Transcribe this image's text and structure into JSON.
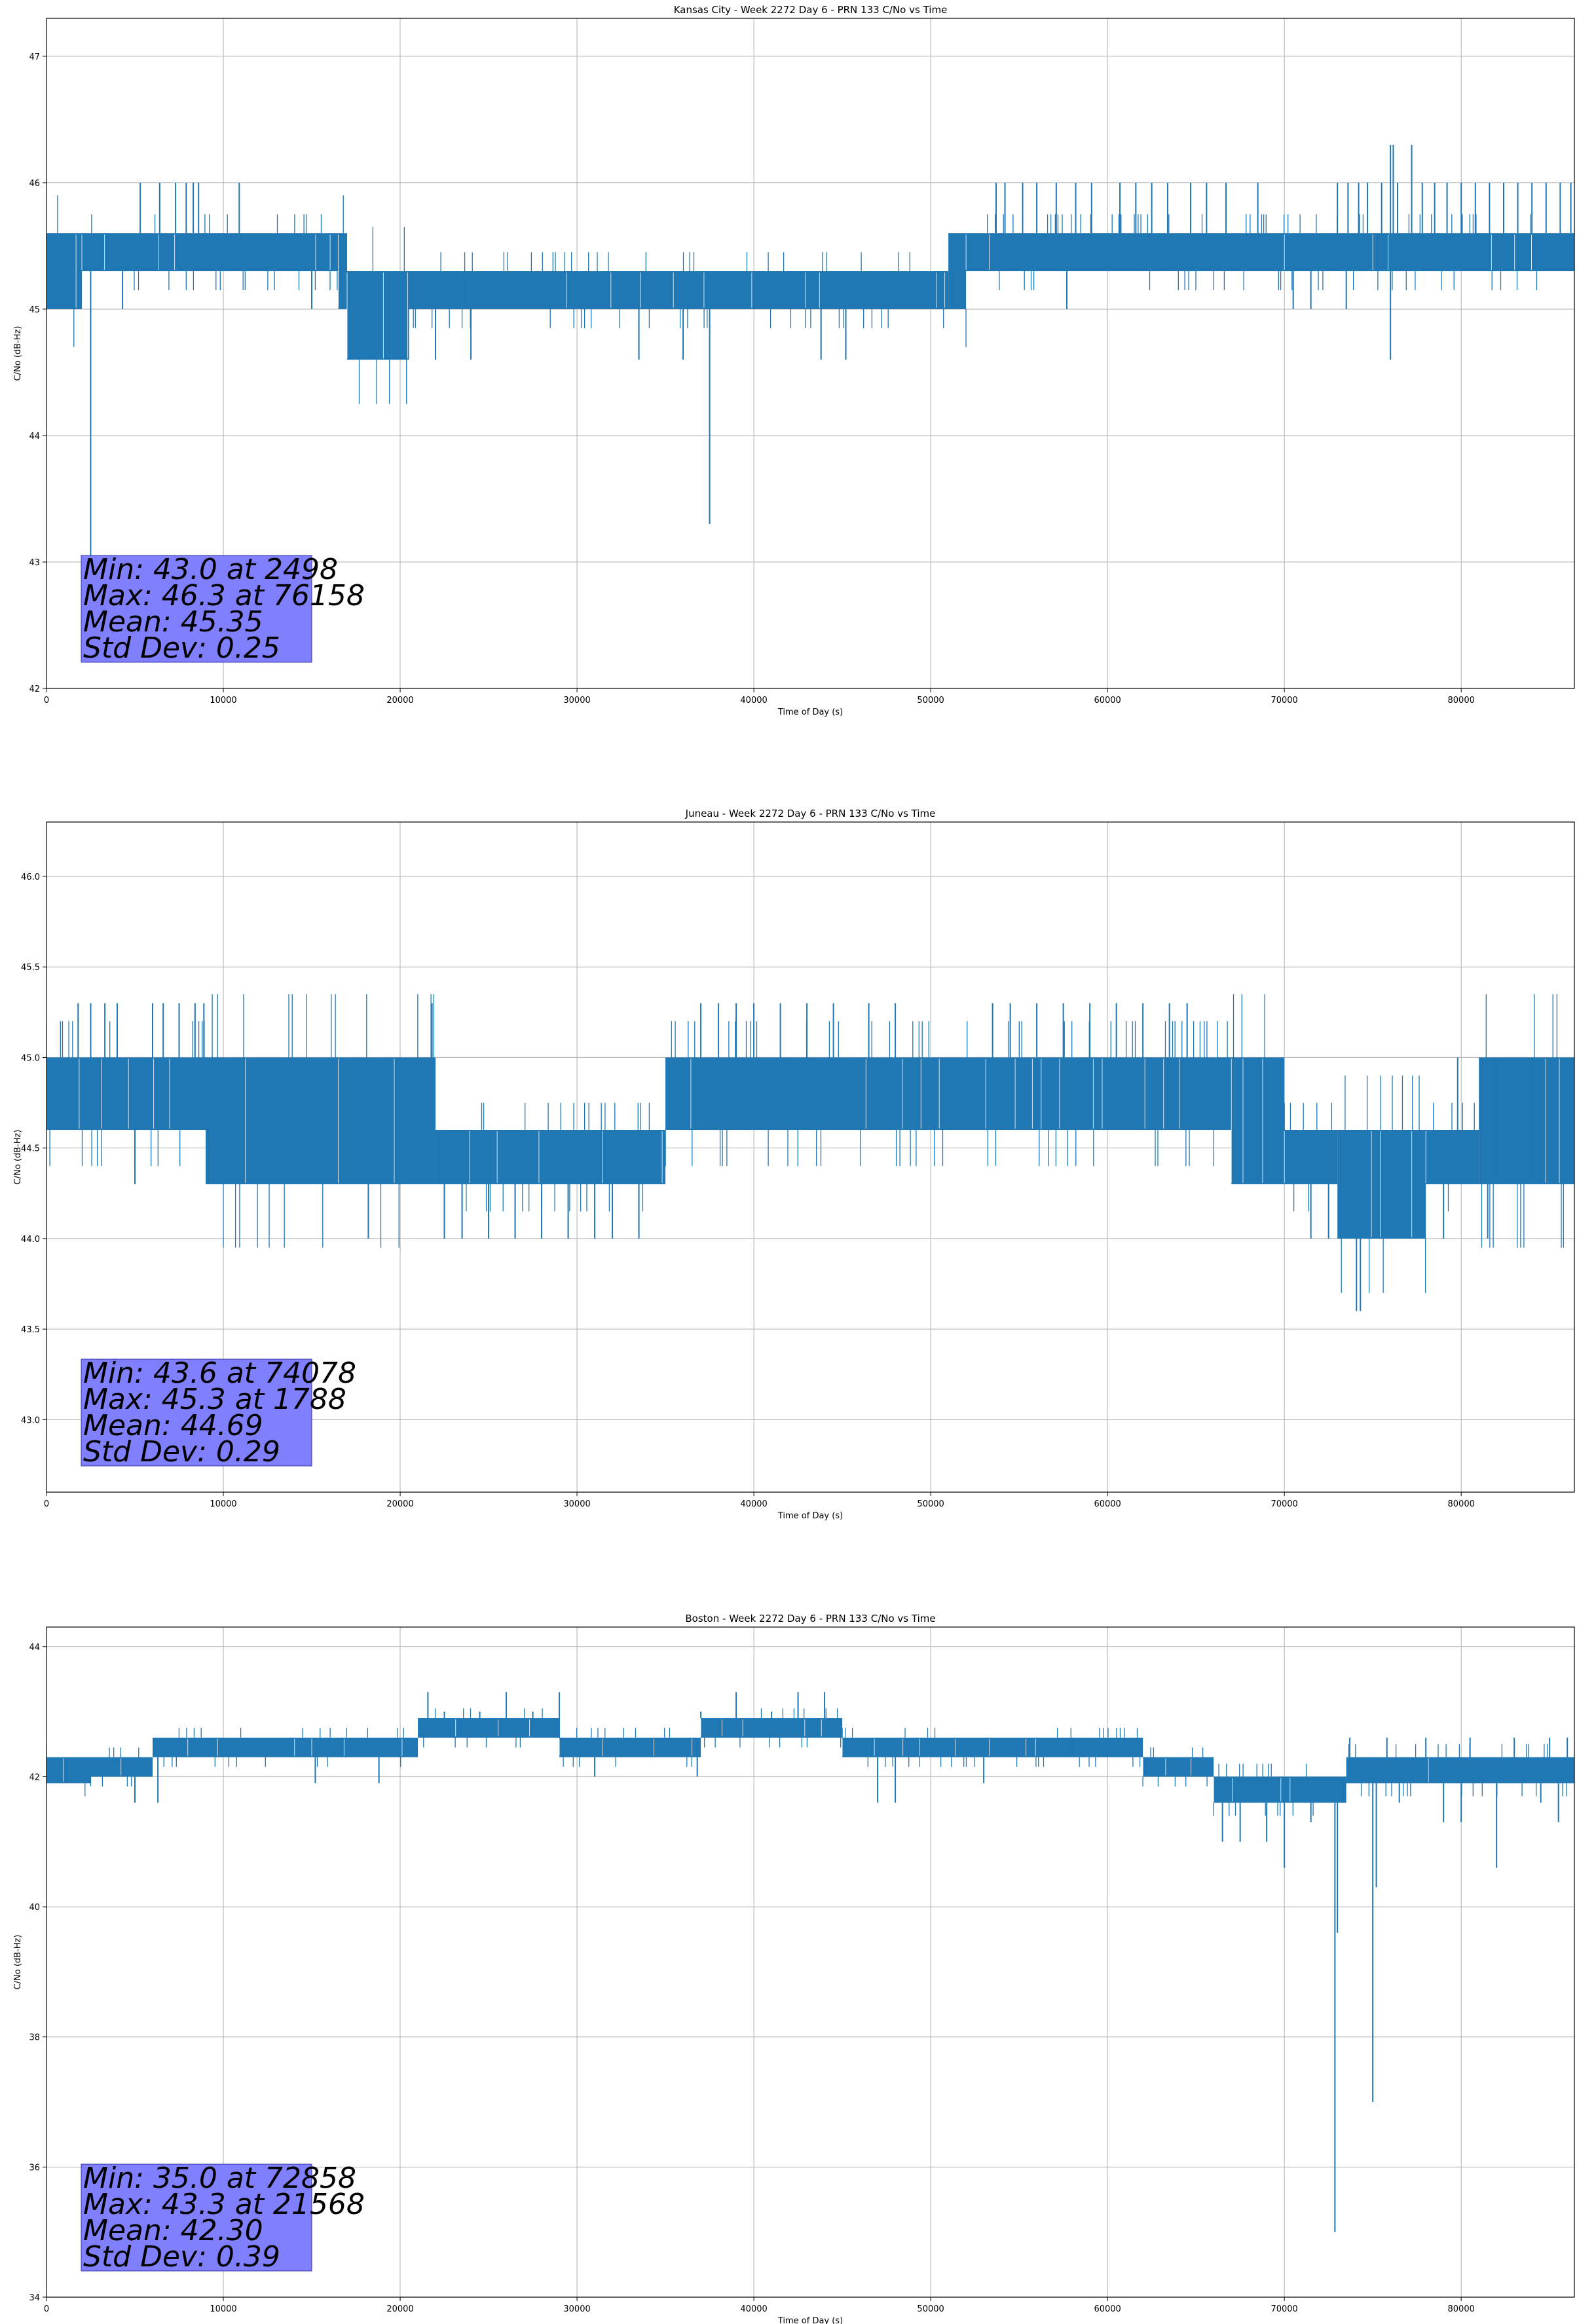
{
  "figure": {
    "background": "#ffffff",
    "line_color": "#1f77b4",
    "grid_color": "#b0b0b0",
    "stats_box_color": "#8080ff"
  },
  "chart_data": [
    {
      "type": "line",
      "title": "Kansas City - Week 2272 Day 6 - PRN 133 C/No vs Time",
      "xlabel": "Time of Day (s)",
      "ylabel": "C/No (dB-Hz)",
      "xlim": [
        0,
        86400
      ],
      "ylim": [
        42,
        47.3
      ],
      "xticks": [
        0,
        10000,
        20000,
        30000,
        40000,
        50000,
        60000,
        70000,
        80000
      ],
      "yticks": [
        42,
        43,
        44,
        45,
        46,
        47
      ],
      "ytick_labels": [
        "42",
        "43",
        "44",
        "45",
        "46",
        "47"
      ],
      "grid": true,
      "stats": [
        "Min: 43.0 at 2498",
        "Max: 46.3 at 76158",
        "Mean: 45.35",
        "Std Dev: 0.25"
      ],
      "band_segments": [
        {
          "x": [
            0,
            2000
          ],
          "low": 45.0,
          "high": 45.6
        },
        {
          "x": [
            2000,
            16500
          ],
          "low": 45.3,
          "high": 45.6
        },
        {
          "x": [
            16500,
            17000
          ],
          "low": 45.0,
          "high": 45.6
        },
        {
          "x": [
            17000,
            19500
          ],
          "low": 44.6,
          "high": 45.3
        },
        {
          "x": [
            19500,
            20500
          ],
          "low": 44.6,
          "high": 45.3
        },
        {
          "x": [
            20500,
            23500
          ],
          "low": 45.0,
          "high": 45.3
        },
        {
          "x": [
            23500,
            51000
          ],
          "low": 45.0,
          "high": 45.3
        },
        {
          "x": [
            51000,
            52000
          ],
          "low": 45.0,
          "high": 45.6
        },
        {
          "x": [
            52000,
            70000
          ],
          "low": 45.3,
          "high": 45.6
        },
        {
          "x": [
            70000,
            75000
          ],
          "low": 45.3,
          "high": 45.6
        },
        {
          "x": [
            75000,
            86400
          ],
          "low": 45.3,
          "high": 45.6
        }
      ],
      "spikes": [
        [
          2498,
          43.0
        ],
        [
          37500,
          43.3
        ],
        [
          33500,
          44.6
        ],
        [
          36000,
          44.6
        ],
        [
          43800,
          44.6
        ],
        [
          45200,
          44.6
        ],
        [
          22000,
          44.6
        ],
        [
          24000,
          44.6
        ],
        [
          4300,
          45.0
        ],
        [
          15000,
          45.0
        ],
        [
          57700,
          45.0
        ],
        [
          76000,
          44.6
        ],
        [
          70500,
          45.0
        ],
        [
          71500,
          45.0
        ],
        [
          73500,
          45.0
        ],
        [
          85700,
          45.3
        ],
        [
          5300,
          46.0
        ],
        [
          6400,
          46.0
        ],
        [
          7300,
          46.0
        ],
        [
          7900,
          46.0
        ],
        [
          8300,
          46.0
        ],
        [
          8600,
          46.0
        ],
        [
          10900,
          46.0
        ],
        [
          53700,
          46.0
        ],
        [
          54200,
          46.0
        ],
        [
          55200,
          46.0
        ],
        [
          56000,
          46.0
        ],
        [
          57100,
          46.0
        ],
        [
          58200,
          46.0
        ],
        [
          59100,
          46.0
        ],
        [
          60700,
          46.0
        ],
        [
          61600,
          46.0
        ],
        [
          62500,
          46.0
        ],
        [
          63400,
          46.0
        ],
        [
          64700,
          46.0
        ],
        [
          65600,
          46.0
        ],
        [
          66700,
          46.0
        ],
        [
          68500,
          46.0
        ],
        [
          73000,
          46.0
        ],
        [
          73600,
          46.0
        ],
        [
          74200,
          46.0
        ],
        [
          74700,
          46.0
        ],
        [
          75500,
          46.0
        ],
        [
          76000,
          46.3
        ],
        [
          76158,
          46.3
        ],
        [
          76400,
          46.0
        ],
        [
          77200,
          46.3
        ],
        [
          77800,
          46.0
        ],
        [
          78500,
          46.0
        ],
        [
          79200,
          46.0
        ],
        [
          80000,
          46.0
        ],
        [
          80800,
          46.0
        ],
        [
          81600,
          46.0
        ],
        [
          82400,
          46.0
        ],
        [
          83200,
          46.0
        ],
        [
          84000,
          46.0
        ],
        [
          84800,
          46.0
        ],
        [
          85600,
          46.0
        ],
        [
          86200,
          46.0
        ]
      ]
    },
    {
      "type": "line",
      "title": "Juneau - Week 2272 Day 6 - PRN 133 C/No vs Time",
      "xlabel": "Time of Day (s)",
      "ylabel": "C/No (dB-Hz)",
      "xlim": [
        0,
        86400
      ],
      "ylim": [
        42.6,
        46.3
      ],
      "xticks": [
        0,
        10000,
        20000,
        30000,
        40000,
        50000,
        60000,
        70000,
        80000
      ],
      "yticks": [
        43.0,
        43.5,
        44.0,
        44.5,
        45.0,
        45.5,
        46.0
      ],
      "ytick_labels": [
        "43.0",
        "43.5",
        "44.0",
        "44.5",
        "45.0",
        "45.5",
        "46.0"
      ],
      "grid": true,
      "stats": [
        "Min: 43.6 at 74078",
        "Max: 45.3 at 1788",
        "Mean: 44.69",
        "Std Dev: 0.29"
      ],
      "band_segments": [
        {
          "x": [
            0,
            9000
          ],
          "low": 44.6,
          "high": 45.0
        },
        {
          "x": [
            9000,
            16500
          ],
          "low": 44.3,
          "high": 45.0
        },
        {
          "x": [
            16500,
            22000
          ],
          "low": 44.3,
          "high": 45.0
        },
        {
          "x": [
            22000,
            35000
          ],
          "low": 44.3,
          "high": 44.6
        },
        {
          "x": [
            35000,
            67000
          ],
          "low": 44.6,
          "high": 45.0
        },
        {
          "x": [
            67000,
            70000
          ],
          "low": 44.3,
          "high": 45.0
        },
        {
          "x": [
            70000,
            73000
          ],
          "low": 44.3,
          "high": 44.6
        },
        {
          "x": [
            73000,
            78000
          ],
          "low": 44.0,
          "high": 44.6
        },
        {
          "x": [
            78000,
            81000
          ],
          "low": 44.3,
          "high": 44.6
        },
        {
          "x": [
            81000,
            86400
          ],
          "low": 44.3,
          "high": 45.0
        }
      ],
      "spikes": [
        [
          1788,
          45.3
        ],
        [
          2500,
          45.3
        ],
        [
          3300,
          45.3
        ],
        [
          4000,
          45.3
        ],
        [
          6000,
          45.3
        ],
        [
          6600,
          45.3
        ],
        [
          7500,
          45.3
        ],
        [
          8400,
          45.3
        ],
        [
          8900,
          45.3
        ],
        [
          21800,
          45.3
        ],
        [
          5000,
          44.3
        ],
        [
          18200,
          44.0
        ],
        [
          22500,
          44.0
        ],
        [
          23500,
          44.0
        ],
        [
          25000,
          44.0
        ],
        [
          26500,
          44.0
        ],
        [
          28000,
          44.0
        ],
        [
          29500,
          44.0
        ],
        [
          31000,
          44.0
        ],
        [
          32000,
          44.0
        ],
        [
          33500,
          44.0
        ],
        [
          37000,
          45.3
        ],
        [
          38000,
          45.3
        ],
        [
          39000,
          45.3
        ],
        [
          40000,
          45.3
        ],
        [
          41500,
          45.3
        ],
        [
          43000,
          45.3
        ],
        [
          44500,
          45.3
        ],
        [
          46500,
          45.3
        ],
        [
          48000,
          45.3
        ],
        [
          53500,
          45.3
        ],
        [
          54500,
          45.3
        ],
        [
          56000,
          45.3
        ],
        [
          57500,
          45.3
        ],
        [
          59000,
          45.3
        ],
        [
          60500,
          45.3
        ],
        [
          62000,
          45.3
        ],
        [
          63500,
          45.3
        ],
        [
          64500,
          45.3
        ],
        [
          71500,
          44.0
        ],
        [
          72500,
          44.0
        ],
        [
          74078,
          43.6
        ],
        [
          74300,
          43.6
        ],
        [
          76000,
          44.0
        ],
        [
          77500,
          44.0
        ],
        [
          79000,
          44.0
        ],
        [
          81500,
          44.0
        ],
        [
          79800,
          45.0
        ],
        [
          82000,
          45.0
        ],
        [
          84000,
          45.0
        ]
      ]
    },
    {
      "type": "line",
      "title": "Boston - Week 2272 Day 6 - PRN 133 C/No vs Time",
      "xlabel": "Time of Day (s)",
      "ylabel": "C/No (dB-Hz)",
      "xlim": [
        0,
        86400
      ],
      "ylim": [
        34,
        44.3
      ],
      "xticks": [
        0,
        10000,
        20000,
        30000,
        40000,
        50000,
        60000,
        70000,
        80000
      ],
      "yticks": [
        34,
        36,
        38,
        40,
        42,
        44
      ],
      "ytick_labels": [
        "34",
        "36",
        "38",
        "40",
        "42",
        "44"
      ],
      "grid": true,
      "stats": [
        "Min: 35.0 at 72858",
        "Max: 43.3 at 21568",
        "Mean: 42.30",
        "Std Dev: 0.39"
      ],
      "band_segments": [
        {
          "x": [
            0,
            2500
          ],
          "low": 41.9,
          "high": 42.3
        },
        {
          "x": [
            2500,
            6000
          ],
          "low": 42.0,
          "high": 42.3
        },
        {
          "x": [
            6000,
            15000
          ],
          "low": 42.3,
          "high": 42.6
        },
        {
          "x": [
            15000,
            21000
          ],
          "low": 42.3,
          "high": 42.6
        },
        {
          "x": [
            21000,
            29000
          ],
          "low": 42.6,
          "high": 42.9
        },
        {
          "x": [
            29000,
            37000
          ],
          "low": 42.3,
          "high": 42.6
        },
        {
          "x": [
            37000,
            45000
          ],
          "low": 42.6,
          "high": 42.9
        },
        {
          "x": [
            45000,
            62000
          ],
          "low": 42.3,
          "high": 42.6
        },
        {
          "x": [
            62000,
            66000
          ],
          "low": 42.0,
          "high": 42.3
        },
        {
          "x": [
            66000,
            73500
          ],
          "low": 41.6,
          "high": 42.0
        },
        {
          "x": [
            73500,
            86400
          ],
          "low": 41.9,
          "high": 42.3
        }
      ],
      "spikes": [
        [
          21568,
          43.3
        ],
        [
          22500,
          43.0
        ],
        [
          24500,
          43.0
        ],
        [
          26000,
          43.3
        ],
        [
          27500,
          43.0
        ],
        [
          29000,
          43.3
        ],
        [
          37000,
          43.0
        ],
        [
          39000,
          43.3
        ],
        [
          41000,
          43.0
        ],
        [
          42500,
          43.3
        ],
        [
          44000,
          43.3
        ],
        [
          5000,
          41.6
        ],
        [
          6300,
          41.6
        ],
        [
          15200,
          41.9
        ],
        [
          18800,
          41.9
        ],
        [
          31000,
          42.0
        ],
        [
          36800,
          42.0
        ],
        [
          47000,
          41.6
        ],
        [
          48000,
          41.6
        ],
        [
          53000,
          41.9
        ],
        [
          58000,
          42.6
        ],
        [
          60500,
          42.6
        ],
        [
          66500,
          41.0
        ],
        [
          67500,
          41.0
        ],
        [
          69000,
          41.0
        ],
        [
          70000,
          40.6
        ],
        [
          71500,
          41.3
        ],
        [
          72858,
          35.0
        ],
        [
          73000,
          39.6
        ],
        [
          75000,
          37.0
        ],
        [
          75200,
          40.3
        ],
        [
          76500,
          41.6
        ],
        [
          79000,
          41.3
        ],
        [
          80000,
          41.3
        ],
        [
          82000,
          40.6
        ],
        [
          84500,
          41.6
        ],
        [
          85500,
          41.3
        ],
        [
          73700,
          42.6
        ],
        [
          75800,
          42.6
        ],
        [
          78000,
          42.6
        ],
        [
          80500,
          42.6
        ],
        [
          83000,
          42.6
        ],
        [
          85000,
          42.6
        ],
        [
          86000,
          42.6
        ]
      ]
    }
  ]
}
